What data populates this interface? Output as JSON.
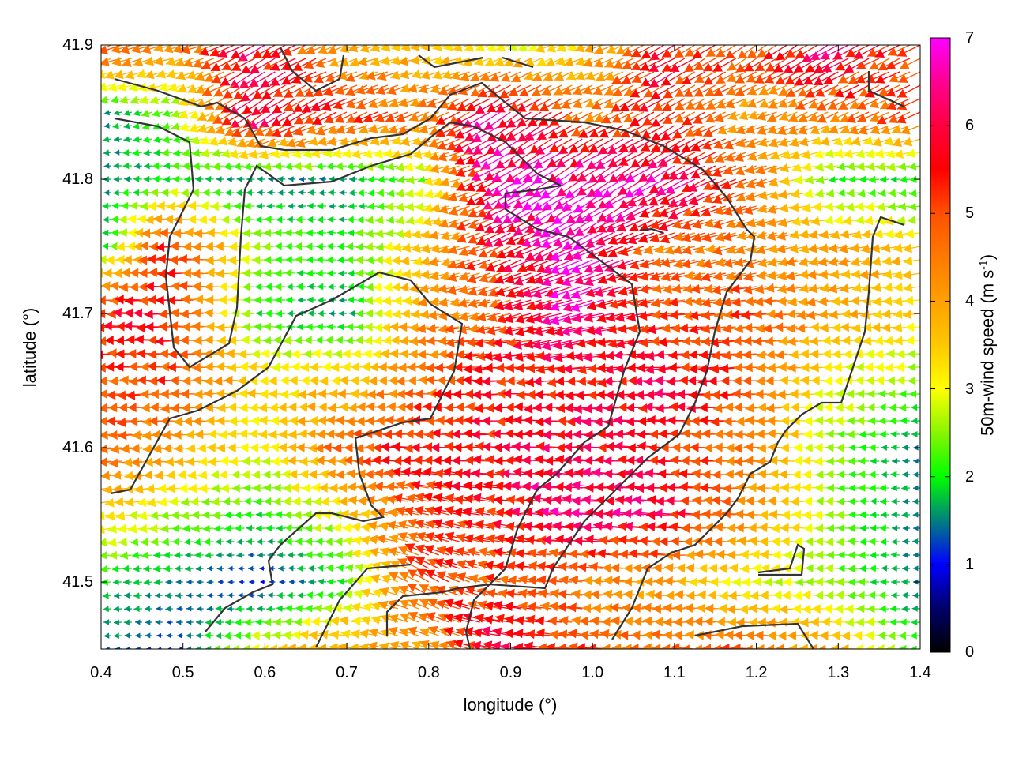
{
  "chart_data": {
    "type": "vector-field",
    "xlabel": "longitude (°)",
    "ylabel": "latitude (°)",
    "xlim": [
      0.4,
      1.4
    ],
    "ylim": [
      41.45,
      41.9
    ],
    "x_ticks": [
      "0.4",
      "0.5",
      "0.6",
      "0.7",
      "0.8",
      "0.9",
      "1.0",
      "1.1",
      "1.2",
      "1.3",
      "1.4"
    ],
    "y_ticks": [
      "41.5",
      "41.6",
      "41.7",
      "41.8",
      "41.9"
    ],
    "colorbar": {
      "label": "50m-wind speed (m s",
      "label_sup": "-1",
      "label_end": ")",
      "range": [
        0,
        7
      ],
      "ticks": [
        "0",
        "1",
        "2",
        "3",
        "4",
        "5",
        "6",
        "7"
      ],
      "colormap": [
        {
          "v": 0,
          "c": "#000000"
        },
        {
          "v": 0.5,
          "c": "#00006a"
        },
        {
          "v": 1,
          "c": "#0000ff"
        },
        {
          "v": 1.5,
          "c": "#00807f"
        },
        {
          "v": 2,
          "c": "#00ff00"
        },
        {
          "v": 2.5,
          "c": "#88f500"
        },
        {
          "v": 3,
          "c": "#ffff00"
        },
        {
          "v": 3.5,
          "c": "#ffc800"
        },
        {
          "v": 4,
          "c": "#ffa000"
        },
        {
          "v": 4.5,
          "c": "#ff7a00"
        },
        {
          "v": 5,
          "c": "#ff5000"
        },
        {
          "v": 5.5,
          "c": "#ff0000"
        },
        {
          "v": 6,
          "c": "#ff0040"
        },
        {
          "v": 6.5,
          "c": "#ff0090"
        },
        {
          "v": 7,
          "c": "#ff00ff"
        }
      ]
    },
    "grid_lon": [
      0.4,
      0.5,
      0.6,
      0.7,
      0.8,
      0.9,
      1.0,
      1.1,
      1.2,
      1.3,
      1.4
    ],
    "grid_lat": [
      41.9,
      41.85,
      41.8,
      41.75,
      41.7,
      41.65,
      41.6,
      41.55,
      41.5,
      41.45
    ],
    "speed_estimate": [
      [
        5,
        4,
        6,
        4,
        3.5,
        3,
        3.5,
        5.5,
        5,
        6,
        5
      ],
      [
        1.5,
        2.5,
        6,
        5.5,
        4.5,
        6.5,
        4.5,
        5.5,
        4,
        4.5,
        5
      ],
      [
        1.5,
        2,
        1.5,
        1.5,
        2.5,
        6.5,
        7,
        6.5,
        5,
        2,
        2
      ],
      [
        1.5,
        5.5,
        2.5,
        2,
        3.5,
        5.5,
        7,
        4.5,
        4.5,
        4,
        3.5
      ],
      [
        5.5,
        5.5,
        2,
        1.5,
        4,
        5,
        6.5,
        5,
        5,
        4,
        3.5
      ],
      [
        5,
        5,
        3.5,
        3.5,
        4.5,
        5.5,
        5.5,
        6,
        5,
        3,
        2.5
      ],
      [
        5,
        4,
        3,
        4.5,
        5.5,
        5.5,
        6,
        5.5,
        4.5,
        2.5,
        1.5
      ],
      [
        3.5,
        2.5,
        2,
        3,
        5,
        5.5,
        6.5,
        6,
        4.5,
        2.5,
        1.5
      ],
      [
        2,
        1.5,
        1,
        2,
        5,
        5,
        4.5,
        4,
        3,
        2.5,
        1.5
      ],
      [
        1.5,
        1.2,
        3,
        4,
        4,
        6,
        5,
        4.5,
        5,
        4,
        2
      ]
    ],
    "direction_toward_deg": [
      [
        250,
        255,
        240,
        250,
        260,
        250,
        250,
        240,
        235,
        240,
        245
      ],
      [
        260,
        250,
        235,
        245,
        250,
        235,
        245,
        240,
        250,
        245,
        245
      ],
      [
        270,
        270,
        270,
        270,
        260,
        240,
        235,
        240,
        250,
        265,
        265
      ],
      [
        270,
        270,
        270,
        270,
        260,
        245,
        245,
        255,
        255,
        260,
        260
      ],
      [
        270,
        270,
        270,
        270,
        265,
        255,
        255,
        262,
        265,
        265,
        265
      ],
      [
        268,
        270,
        270,
        270,
        270,
        268,
        265,
        268,
        268,
        270,
        270
      ],
      [
        265,
        265,
        270,
        270,
        270,
        272,
        272,
        272,
        270,
        270,
        270
      ],
      [
        262,
        265,
        270,
        270,
        285,
        278,
        275,
        272,
        272,
        270,
        270
      ],
      [
        265,
        268,
        270,
        275,
        300,
        280,
        275,
        272,
        270,
        270,
        270
      ],
      [
        270,
        270,
        270,
        275,
        290,
        280,
        275,
        272,
        270,
        270,
        270
      ]
    ],
    "contour_color": "#333333"
  }
}
